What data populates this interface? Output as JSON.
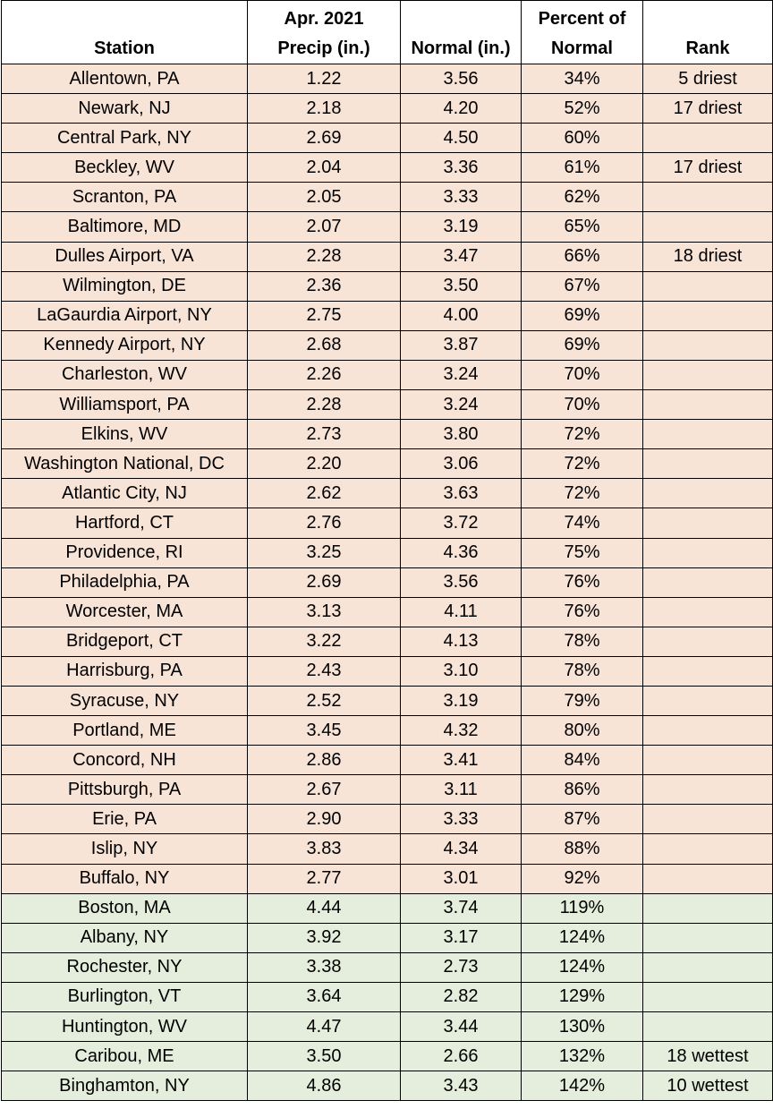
{
  "headers": {
    "station": "Station",
    "precip_line1": "Apr. 2021",
    "precip_line2": "Precip (in.)",
    "normal": "Normal (in.)",
    "percent_line1": "Percent of",
    "percent_line2": "Normal",
    "rank": "Rank"
  },
  "colors": {
    "below_normal_fill": "#f8e3d7",
    "above_normal_fill": "#e5eedc"
  },
  "rows": [
    {
      "station": "Allentown, PA",
      "precip": "1.22",
      "normal": "3.56",
      "percent": "34%",
      "rank": "5 driest",
      "group": "dry"
    },
    {
      "station": "Newark, NJ",
      "precip": "2.18",
      "normal": "4.20",
      "percent": "52%",
      "rank": "17 driest",
      "group": "dry"
    },
    {
      "station": "Central Park, NY",
      "precip": "2.69",
      "normal": "4.50",
      "percent": "60%",
      "rank": "",
      "group": "dry"
    },
    {
      "station": "Beckley, WV",
      "precip": "2.04",
      "normal": "3.36",
      "percent": "61%",
      "rank": "17 driest",
      "group": "dry"
    },
    {
      "station": "Scranton, PA",
      "precip": "2.05",
      "normal": "3.33",
      "percent": "62%",
      "rank": "",
      "group": "dry"
    },
    {
      "station": "Baltimore, MD",
      "precip": "2.07",
      "normal": "3.19",
      "percent": "65%",
      "rank": "",
      "group": "dry"
    },
    {
      "station": "Dulles Airport, VA",
      "precip": "2.28",
      "normal": "3.47",
      "percent": "66%",
      "rank": "18 driest",
      "group": "dry"
    },
    {
      "station": "Wilmington, DE",
      "precip": "2.36",
      "normal": "3.50",
      "percent": "67%",
      "rank": "",
      "group": "dry"
    },
    {
      "station": "LaGaurdia Airport, NY",
      "precip": "2.75",
      "normal": "4.00",
      "percent": "69%",
      "rank": "",
      "group": "dry"
    },
    {
      "station": "Kennedy Airport, NY",
      "precip": "2.68",
      "normal": "3.87",
      "percent": "69%",
      "rank": "",
      "group": "dry"
    },
    {
      "station": "Charleston, WV",
      "precip": "2.26",
      "normal": "3.24",
      "percent": "70%",
      "rank": "",
      "group": "dry"
    },
    {
      "station": "Williamsport, PA",
      "precip": "2.28",
      "normal": "3.24",
      "percent": "70%",
      "rank": "",
      "group": "dry"
    },
    {
      "station": "Elkins, WV",
      "precip": "2.73",
      "normal": "3.80",
      "percent": "72%",
      "rank": "",
      "group": "dry"
    },
    {
      "station": "Washington National, DC",
      "precip": "2.20",
      "normal": "3.06",
      "percent": "72%",
      "rank": "",
      "group": "dry"
    },
    {
      "station": "Atlantic City, NJ",
      "precip": "2.62",
      "normal": "3.63",
      "percent": "72%",
      "rank": "",
      "group": "dry"
    },
    {
      "station": "Hartford, CT",
      "precip": "2.76",
      "normal": "3.72",
      "percent": "74%",
      "rank": "",
      "group": "dry"
    },
    {
      "station": "Providence, RI",
      "precip": "3.25",
      "normal": "4.36",
      "percent": "75%",
      "rank": "",
      "group": "dry"
    },
    {
      "station": "Philadelphia, PA",
      "precip": "2.69",
      "normal": "3.56",
      "percent": "76%",
      "rank": "",
      "group": "dry"
    },
    {
      "station": "Worcester, MA",
      "precip": "3.13",
      "normal": "4.11",
      "percent": "76%",
      "rank": "",
      "group": "dry"
    },
    {
      "station": "Bridgeport, CT",
      "precip": "3.22",
      "normal": "4.13",
      "percent": "78%",
      "rank": "",
      "group": "dry"
    },
    {
      "station": "Harrisburg, PA",
      "precip": "2.43",
      "normal": "3.10",
      "percent": "78%",
      "rank": "",
      "group": "dry"
    },
    {
      "station": "Syracuse, NY",
      "precip": "2.52",
      "normal": "3.19",
      "percent": "79%",
      "rank": "",
      "group": "dry"
    },
    {
      "station": "Portland, ME",
      "precip": "3.45",
      "normal": "4.32",
      "percent": "80%",
      "rank": "",
      "group": "dry"
    },
    {
      "station": "Concord, NH",
      "precip": "2.86",
      "normal": "3.41",
      "percent": "84%",
      "rank": "",
      "group": "dry"
    },
    {
      "station": "Pittsburgh, PA",
      "precip": "2.67",
      "normal": "3.11",
      "percent": "86%",
      "rank": "",
      "group": "dry"
    },
    {
      "station": "Erie, PA",
      "precip": "2.90",
      "normal": "3.33",
      "percent": "87%",
      "rank": "",
      "group": "dry"
    },
    {
      "station": "Islip, NY",
      "precip": "3.83",
      "normal": "4.34",
      "percent": "88%",
      "rank": "",
      "group": "dry"
    },
    {
      "station": "Buffalo, NY",
      "precip": "2.77",
      "normal": "3.01",
      "percent": "92%",
      "rank": "",
      "group": "dry"
    },
    {
      "station": "Boston, MA",
      "precip": "4.44",
      "normal": "3.74",
      "percent": "119%",
      "rank": "",
      "group": "wet"
    },
    {
      "station": "Albany, NY",
      "precip": "3.92",
      "normal": "3.17",
      "percent": "124%",
      "rank": "",
      "group": "wet"
    },
    {
      "station": "Rochester, NY",
      "precip": "3.38",
      "normal": "2.73",
      "percent": "124%",
      "rank": "",
      "group": "wet"
    },
    {
      "station": "Burlington, VT",
      "precip": "3.64",
      "normal": "2.82",
      "percent": "129%",
      "rank": "",
      "group": "wet"
    },
    {
      "station": "Huntington, WV",
      "precip": "4.47",
      "normal": "3.44",
      "percent": "130%",
      "rank": "",
      "group": "wet"
    },
    {
      "station": "Caribou, ME",
      "precip": "3.50",
      "normal": "2.66",
      "percent": "132%",
      "rank": "18 wettest",
      "group": "wet"
    },
    {
      "station": "Binghamton, NY",
      "precip": "4.86",
      "normal": "3.43",
      "percent": "142%",
      "rank": "10 wettest",
      "group": "wet"
    }
  ]
}
